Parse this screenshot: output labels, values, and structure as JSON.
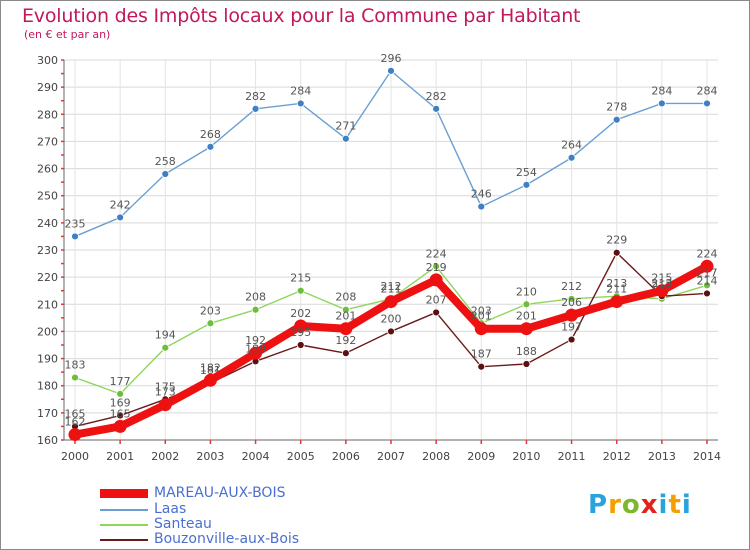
{
  "title": "Evolution des Impôts locaux pour la Commune par Habitant",
  "subtitle": "(en € et par an)",
  "logo": {
    "p": "P",
    "r": "r",
    "o": "o",
    "x": "x",
    "i": "i",
    "t": "t",
    "i2": "i"
  },
  "legend": [
    {
      "label": "MAREAU-AUX-BOIS",
      "color": "#ee1111"
    },
    {
      "label": "Laas",
      "color": "#6a9fd4"
    },
    {
      "label": "Santeau",
      "color": "#8ed65a"
    },
    {
      "label": "Bouzonville-aux-Bois",
      "color": "#6b1a1a"
    }
  ],
  "chart_data": {
    "type": "line",
    "title": "Evolution des Impôts locaux pour la Commune par Habitant",
    "ylabel": "(en € et par an)",
    "xlabel": "",
    "ylim": [
      160,
      300
    ],
    "yticks": [
      160,
      170,
      180,
      190,
      200,
      210,
      220,
      230,
      240,
      250,
      260,
      270,
      280,
      290,
      300
    ],
    "categories": [
      "2000",
      "2001",
      "2002",
      "2003",
      "2004",
      "2005",
      "2006",
      "2007",
      "2008",
      "2009",
      "2010",
      "2011",
      "2012",
      "2013",
      "2014"
    ],
    "series": [
      {
        "name": "Laas",
        "color": "#6a9fd4",
        "point": "#3f7fc4",
        "values": [
          235,
          242,
          258,
          268,
          282,
          284,
          271,
          296,
          282,
          246,
          254,
          264,
          278,
          284,
          284
        ]
      },
      {
        "name": "Santeau",
        "color": "#8ed65a",
        "point": "#6dbf3a",
        "values": [
          183,
          177,
          194,
          203,
          208,
          215,
          208,
          212,
          224,
          203,
          210,
          212,
          213,
          212,
          217
        ]
      },
      {
        "name": "Bouzonville-aux-Bois",
        "color": "#6b1a1a",
        "point": "#5a1010",
        "values": [
          165,
          169,
          175,
          181,
          189,
          195,
          192,
          200,
          207,
          187,
          188,
          197,
          229,
          213,
          214
        ]
      },
      {
        "name": "MAREAU-AUX-BOIS",
        "color": "#ee1111",
        "point": "#ee1111",
        "values": [
          162,
          165,
          173,
          182,
          192,
          202,
          201,
          211,
          219,
          201,
          201,
          206,
          211,
          215,
          224
        ]
      }
    ]
  }
}
